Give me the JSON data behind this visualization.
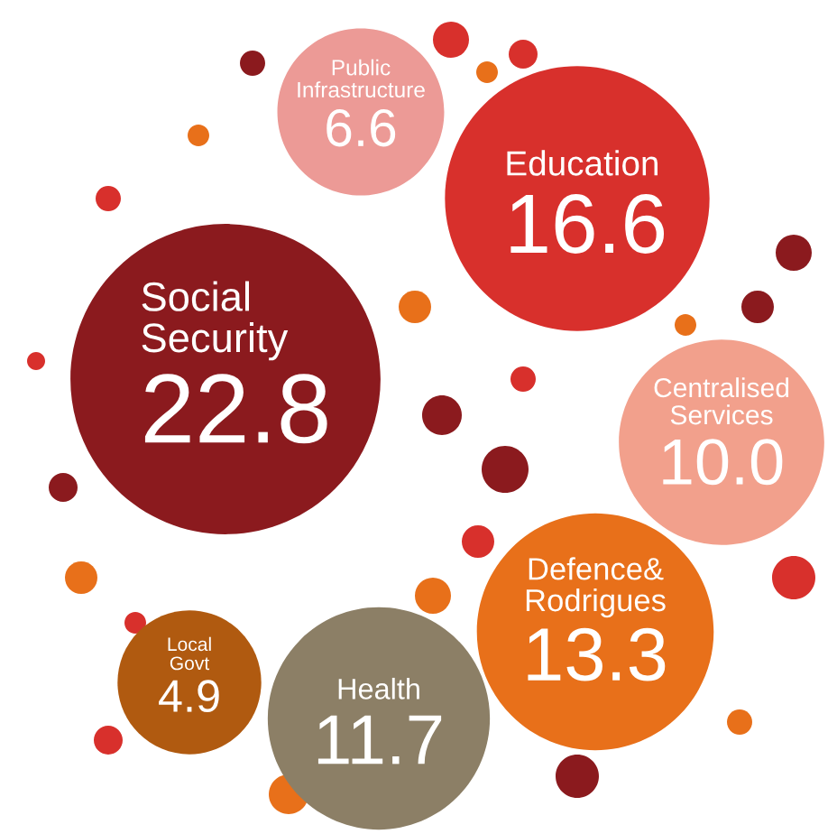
{
  "chart_data": {
    "type": "other",
    "categories": [
      "Social\nSecurity",
      "Education",
      "Public\nInfrastructure",
      "Centralised\nServices",
      "Defence&\nRodrigues",
      "Health",
      "Local\nGovt"
    ],
    "values": [
      22.8,
      16.6,
      6.6,
      10.0,
      13.3,
      11.7,
      4.9
    ],
    "value_labels": [
      "22.8",
      "16.6",
      "6.6",
      "10.0",
      "13.3",
      "11.7",
      "4.9"
    ],
    "colors": [
      "#8b1a1e",
      "#d8302c",
      "#ec9a96",
      "#f2a08c",
      "#e8701a",
      "#8c7f66",
      "#b05a10"
    ]
  }
}
